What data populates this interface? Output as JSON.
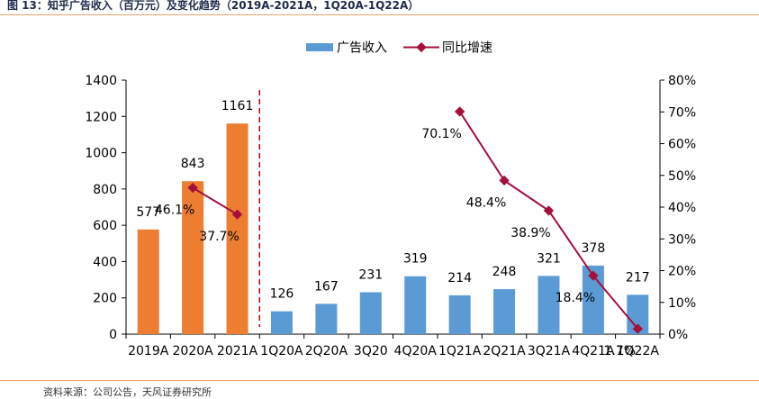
{
  "header": {
    "title": "图 13：知乎广告收入（百万元）及变化趋势（2019A-2021A，1Q20A-1Q22A）"
  },
  "footer": {
    "source": "资料来源：公司公告，天风证券研究所"
  },
  "chart_data": {
    "type": "bar",
    "categories": [
      "2019A",
      "2020A",
      "2021A",
      "1Q20A",
      "2Q20A",
      "3Q20",
      "4Q20A",
      "1Q21A",
      "2Q21A",
      "3Q21A",
      "4Q21A",
      "1Q22A"
    ],
    "series": [
      {
        "name": "广告收入",
        "type": "bar",
        "axis": "left",
        "values": [
          577,
          843,
          1161,
          126,
          167,
          231,
          319,
          214,
          248,
          321,
          378,
          217
        ],
        "value_labels": [
          "577",
          "843",
          "1161",
          "126",
          "167",
          "231",
          "319",
          "214",
          "248",
          "321",
          "378",
          "217"
        ]
      },
      {
        "name": "同比增速",
        "type": "line",
        "axis": "right",
        "values": [
          null,
          46.1,
          37.7,
          null,
          null,
          null,
          null,
          70.1,
          48.4,
          38.9,
          18.4,
          1.7
        ],
        "value_labels": [
          null,
          "46.1%",
          "37.7%",
          null,
          null,
          null,
          null,
          "70.1%",
          "48.4%",
          "38.9%",
          "18.4%",
          "1.7%"
        ]
      }
    ],
    "y_left": {
      "ylim": [
        0,
        1400
      ],
      "ticks": [
        0,
        200,
        400,
        600,
        800,
        1000,
        1200,
        1400
      ],
      "tick_labels": [
        "0",
        "200",
        "400",
        "600",
        "800",
        "1000",
        "1200",
        "1400"
      ]
    },
    "y_right": {
      "ylim": [
        0,
        80
      ],
      "ticks": [
        0,
        10,
        20,
        30,
        40,
        50,
        60,
        70,
        80
      ],
      "tick_labels": [
        "0%",
        "10%",
        "20%",
        "30%",
        "40%",
        "50%",
        "60%",
        "70%",
        "80%"
      ]
    },
    "legend_position": "top-center",
    "grid": false,
    "divider_after_category": "2021A",
    "colors": {
      "annual_bar": "#ed7d31",
      "quarter_bar": "#5b9bd5",
      "line": "#a50f3a",
      "divider": "#c00000",
      "axis": "#000000"
    }
  }
}
